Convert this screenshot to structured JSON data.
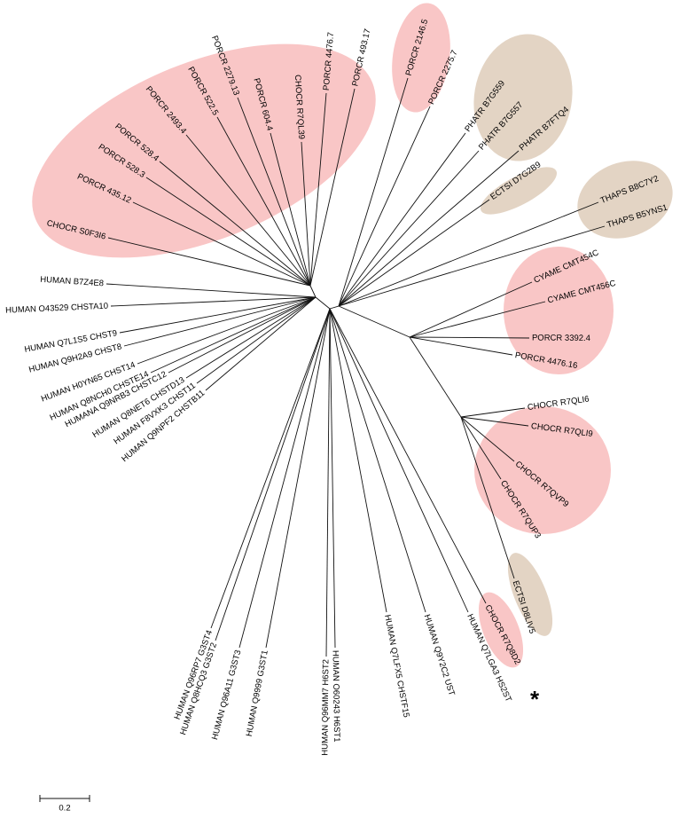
{
  "leaves": [
    "CHOCR S0F3I6",
    "PORCR 435.12",
    "PORCR 528.3",
    "PORCR 528.4",
    "PORCR 2493.4",
    "PORCR 522.5",
    "PORCR 2279.13",
    "PORCR 604.4",
    "CHOCR R7QL39",
    "PORCR 4476.7",
    "PORCR 493.17",
    "PORCR 2146.5",
    "PORCR 2275.7",
    "PHATR B7G559",
    "PHATR B7G557",
    "PHATR B7FTQ4",
    "ECTSI D7G2B9",
    "THAPS B8C7Y2",
    "THAPS B5YNS1",
    "CYAME CMT454C",
    "CYAME CMT456C",
    "PORCR 3392.4",
    "PORCR 4476.16",
    "CHOCR R7QLI6",
    "CHOCR R7QLI9",
    "CHOCR R7QVP9",
    "CHOCR R7QUP3",
    "ECTSI D8LIV5",
    "CHOCR R7Q8D2",
    "HUMAN Q7LGA3 HS2ST",
    "HUMAN Q9Y2C2 UST",
    "HUMAN Q7LFX5 CHSTF15",
    "HUMAN O60243 H6ST1",
    "HUMAN Q96MM7 H6ST2",
    "HUMAN Q9999 G3ST1",
    "HUMAN Q96A11 G3ST3",
    "HUMAN Q8HCQ3 G3ST2",
    "HUMAN Q96RP7 G3ST4",
    "HUMAN Q9NPF2 CHSTB11",
    "HUMAN F8VXK3 CHST11",
    "HUMAN Q8NET6 CHSTD13",
    "HUMANA Q9NRB3 CHSTC12",
    "HUMAN Q8NCH0 CHSTE14",
    "HUMAN H0YN65 CHST14",
    "HUMAN Q9H2A9 CHST8",
    "HUMAN Q7L1S5 CHST9",
    "HUMAN O43529 CHSTA10",
    "HUMAN B7Z4E8"
  ],
  "scale_bar": "0.2",
  "marker": "*"
}
